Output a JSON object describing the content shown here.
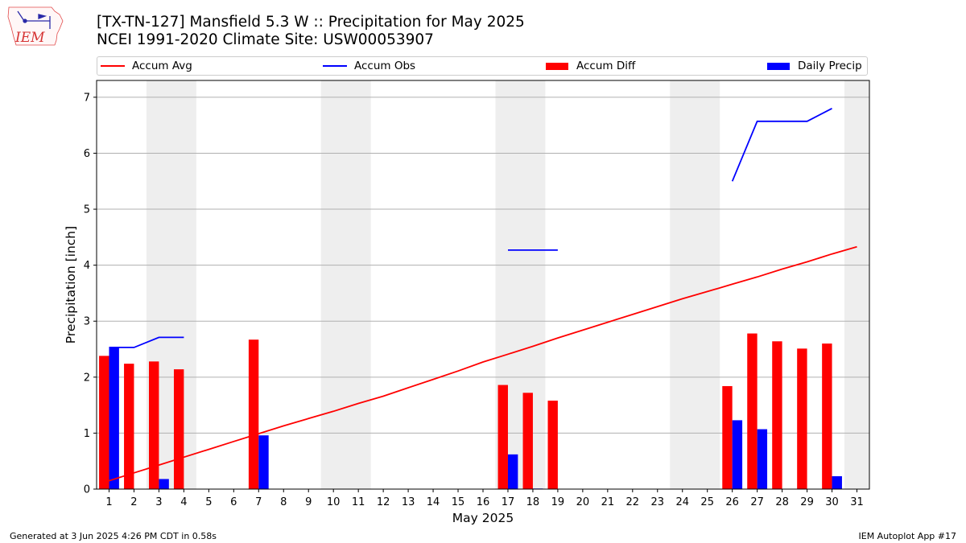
{
  "header": {
    "logo_text": "IEM",
    "title_line1": "[TX-TN-127] Mansfield 5.3 W :: Precipitation for May 2025",
    "title_line2": "NCEI 1991-2020 Climate Site: USW00053907"
  },
  "legend": {
    "placement": "top",
    "items": [
      {
        "label": "Accum Avg",
        "kind": "line",
        "color": "#ff0000"
      },
      {
        "label": "Accum Obs",
        "kind": "line",
        "color": "#0000ff"
      },
      {
        "label": "Accum Diff",
        "kind": "bar",
        "color": "#ff0000"
      },
      {
        "label": "Daily Precip",
        "kind": "bar",
        "color": "#0000ff"
      }
    ]
  },
  "footer": {
    "left": "Generated at 3 Jun 2025 4:26 PM CDT in 0.58s",
    "right": "IEM Autoplot App #17"
  },
  "chart_data": {
    "type": "bar",
    "xlabel": "May 2025",
    "ylabel": "Precipitation [inch]",
    "xlim": [
      0.5,
      31.5
    ],
    "ylim": [
      0,
      7.3
    ],
    "yticks": [
      0,
      1,
      2,
      3,
      4,
      5,
      6,
      7
    ],
    "grid": "horizontal",
    "categories": [
      "1",
      "2",
      "3",
      "4",
      "5",
      "6",
      "7",
      "8",
      "9",
      "10",
      "11",
      "12",
      "13",
      "14",
      "15",
      "16",
      "17",
      "18",
      "19",
      "20",
      "21",
      "22",
      "23",
      "24",
      "25",
      "26",
      "27",
      "28",
      "29",
      "30",
      "31"
    ],
    "weekend_shading": [
      [
        2.5,
        4.5
      ],
      [
        9.5,
        11.5
      ],
      [
        16.5,
        18.5
      ],
      [
        23.5,
        25.5
      ],
      [
        30.5,
        31.5
      ]
    ],
    "series": [
      {
        "name": "Accum Avg",
        "kind": "line",
        "color": "#ff0000",
        "values": [
          0.15,
          0.29,
          0.43,
          0.57,
          0.71,
          0.85,
          0.99,
          1.13,
          1.26,
          1.39,
          1.53,
          1.66,
          1.81,
          1.96,
          2.11,
          2.27,
          2.41,
          2.55,
          2.7,
          2.84,
          2.98,
          3.12,
          3.26,
          3.4,
          3.53,
          3.66,
          3.79,
          3.93,
          4.06,
          4.2,
          4.33
        ]
      },
      {
        "name": "Accum Obs",
        "kind": "line",
        "color": "#0000ff",
        "values": [
          2.53,
          2.53,
          2.71,
          2.71,
          null,
          null,
          null,
          null,
          null,
          null,
          null,
          null,
          null,
          null,
          null,
          null,
          4.27,
          4.27,
          4.27,
          null,
          null,
          null,
          null,
          null,
          null,
          5.5,
          6.57,
          6.57,
          6.57,
          6.8,
          null
        ]
      },
      {
        "name": "Accum Diff",
        "kind": "bar",
        "color": "#ff0000",
        "values": [
          2.38,
          2.24,
          2.28,
          2.14,
          0,
          0,
          2.67,
          0,
          0,
          0,
          0,
          0,
          0,
          0,
          0,
          0,
          1.86,
          1.72,
          1.58,
          0,
          0,
          0,
          0,
          0,
          0,
          1.84,
          2.78,
          2.64,
          2.51,
          2.6,
          0
        ]
      },
      {
        "name": "Daily Precip",
        "kind": "bar",
        "color": "#0000ff",
        "values": [
          2.53,
          0,
          0.18,
          0,
          0,
          0,
          0.96,
          0,
          0,
          0,
          0,
          0,
          0,
          0,
          0,
          0,
          0.62,
          0.01,
          0,
          0,
          0,
          0,
          0,
          0,
          0,
          1.23,
          1.07,
          0,
          0,
          0.23,
          0
        ]
      }
    ]
  }
}
